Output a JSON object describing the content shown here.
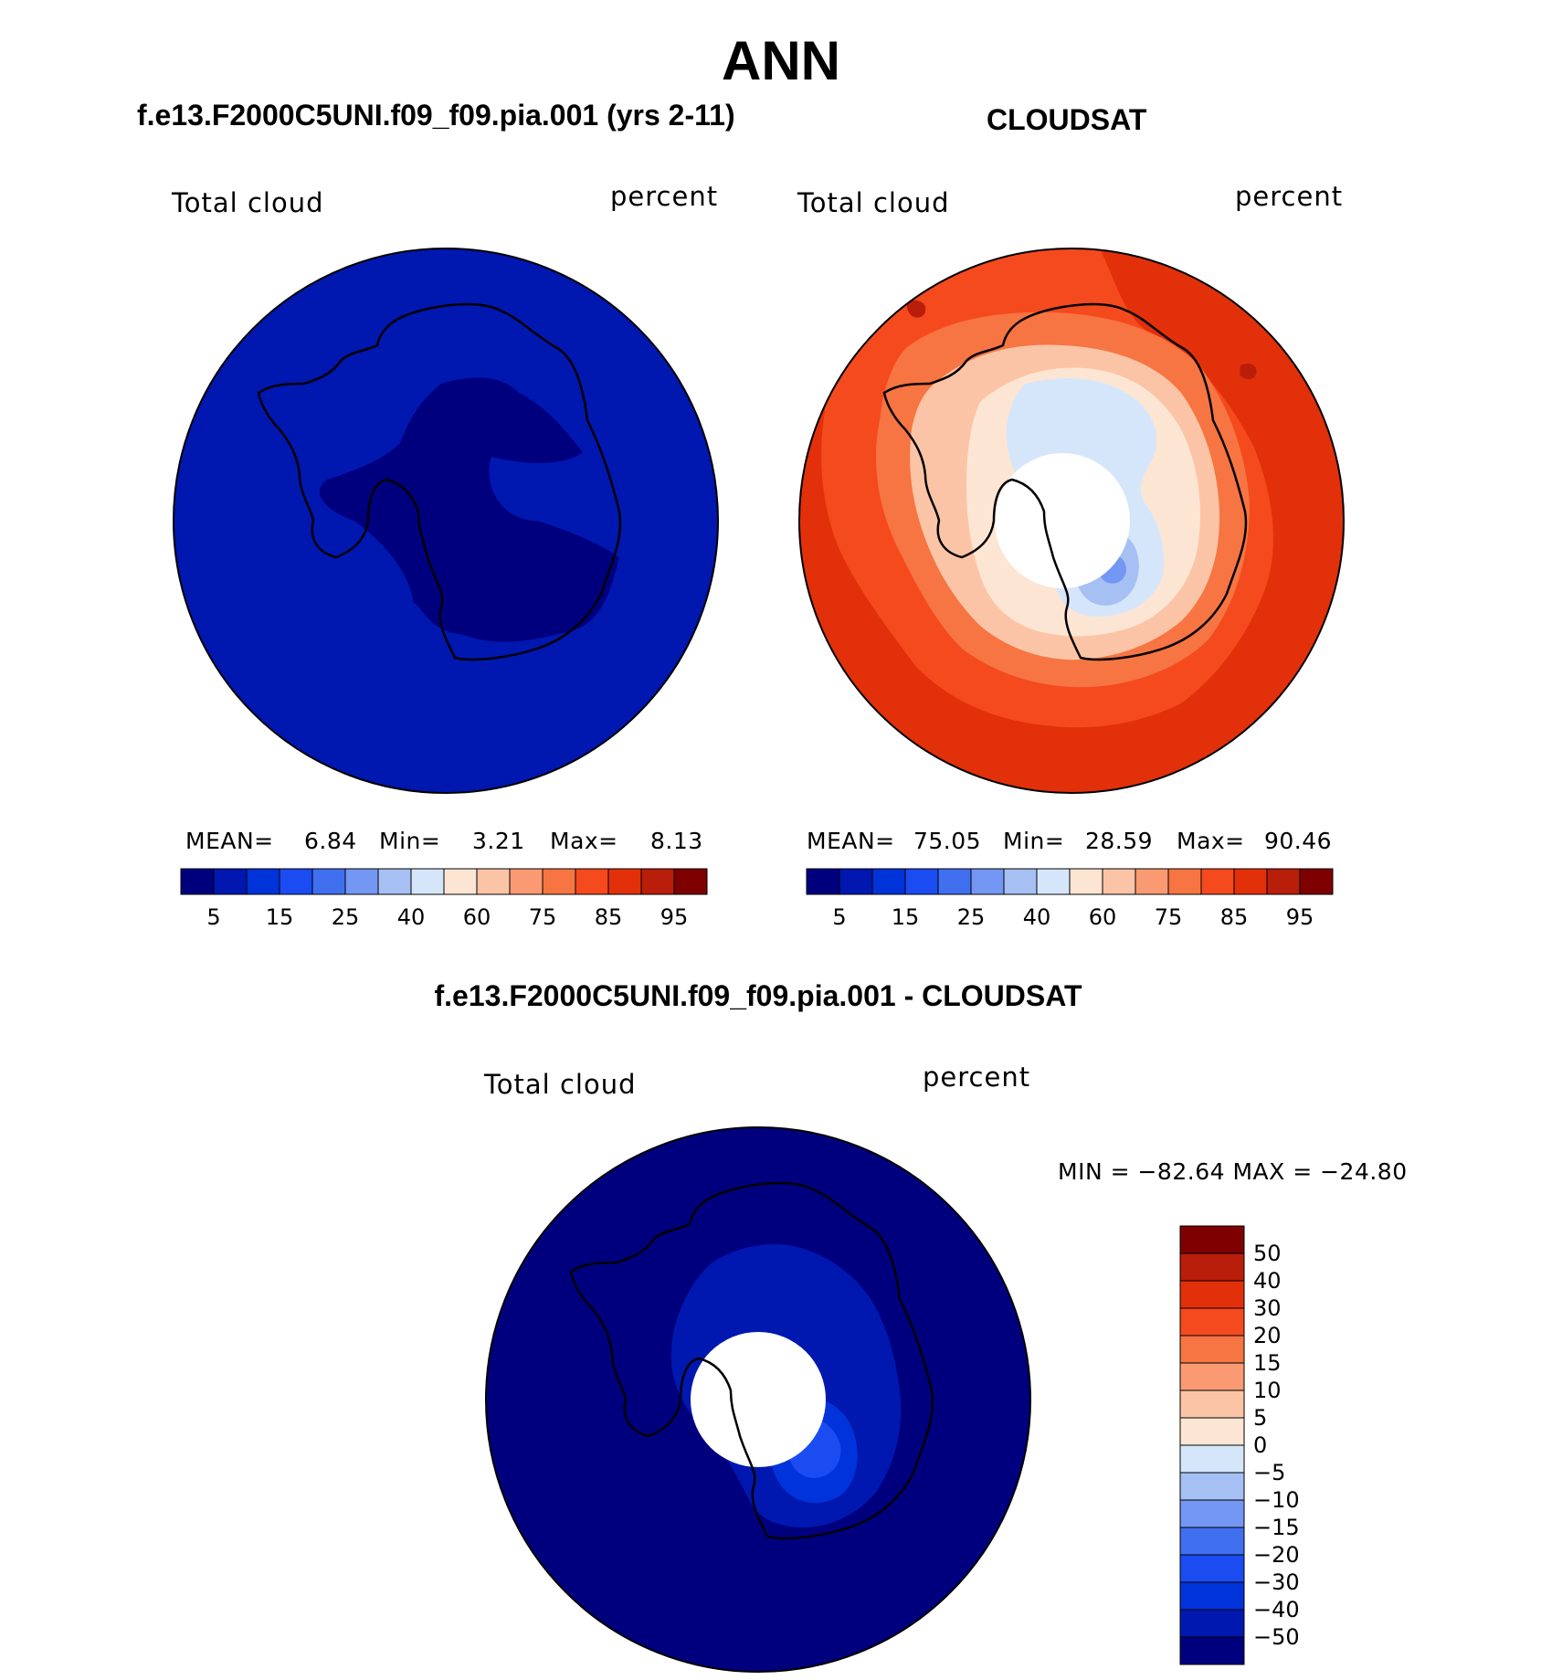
{
  "title": "ANN",
  "panels": [
    {
      "title": "f.e13.F2000C5UNI.f09_f09.pia.001 (yrs 2-11)",
      "left_label": "Total cloud",
      "right_label": "percent",
      "stats": {
        "mean_label": "MEAN=",
        "mean": "6.84",
        "min_label": "Min=",
        "min": "3.21",
        "max_label": "Max=",
        "max": "8.13"
      },
      "colorbar_ticks": [
        "5",
        "15",
        "25",
        "40",
        "60",
        "75",
        "85",
        "95"
      ]
    },
    {
      "title": "CLOUDSAT",
      "left_label": "Total cloud",
      "right_label": "percent",
      "stats": {
        "mean_label": "MEAN=",
        "mean": "75.05",
        "min_label": "Min=",
        "min": "28.59",
        "max_label": "Max=",
        "max": "90.46"
      },
      "colorbar_ticks": [
        "5",
        "15",
        "25",
        "40",
        "60",
        "75",
        "85",
        "95"
      ]
    },
    {
      "title": "f.e13.F2000C5UNI.f09_f09.pia.001 - CLOUDSAT",
      "left_label": "Total cloud",
      "right_label": "percent",
      "stats_text": "MIN = −82.64 MAX = −24.80",
      "colorbar_ticks": [
        "50",
        "40",
        "30",
        "20",
        "15",
        "10",
        "5",
        "0",
        "−5",
        "−10",
        "−15",
        "−20",
        "−30",
        "−40",
        "−50"
      ]
    }
  ],
  "colors": {
    "scale": [
      "#00007f",
      "#0018b0",
      "#0033d9",
      "#1a4cf2",
      "#4070f0",
      "#7397f2",
      "#a6c0f4",
      "#d6e6fa",
      "#fde5d4",
      "#fcc4a6",
      "#f99a73",
      "#f67542",
      "#f44a1e",
      "#e2300a",
      "#b91e0a",
      "#7f0000"
    ],
    "land_line": "#000000"
  }
}
